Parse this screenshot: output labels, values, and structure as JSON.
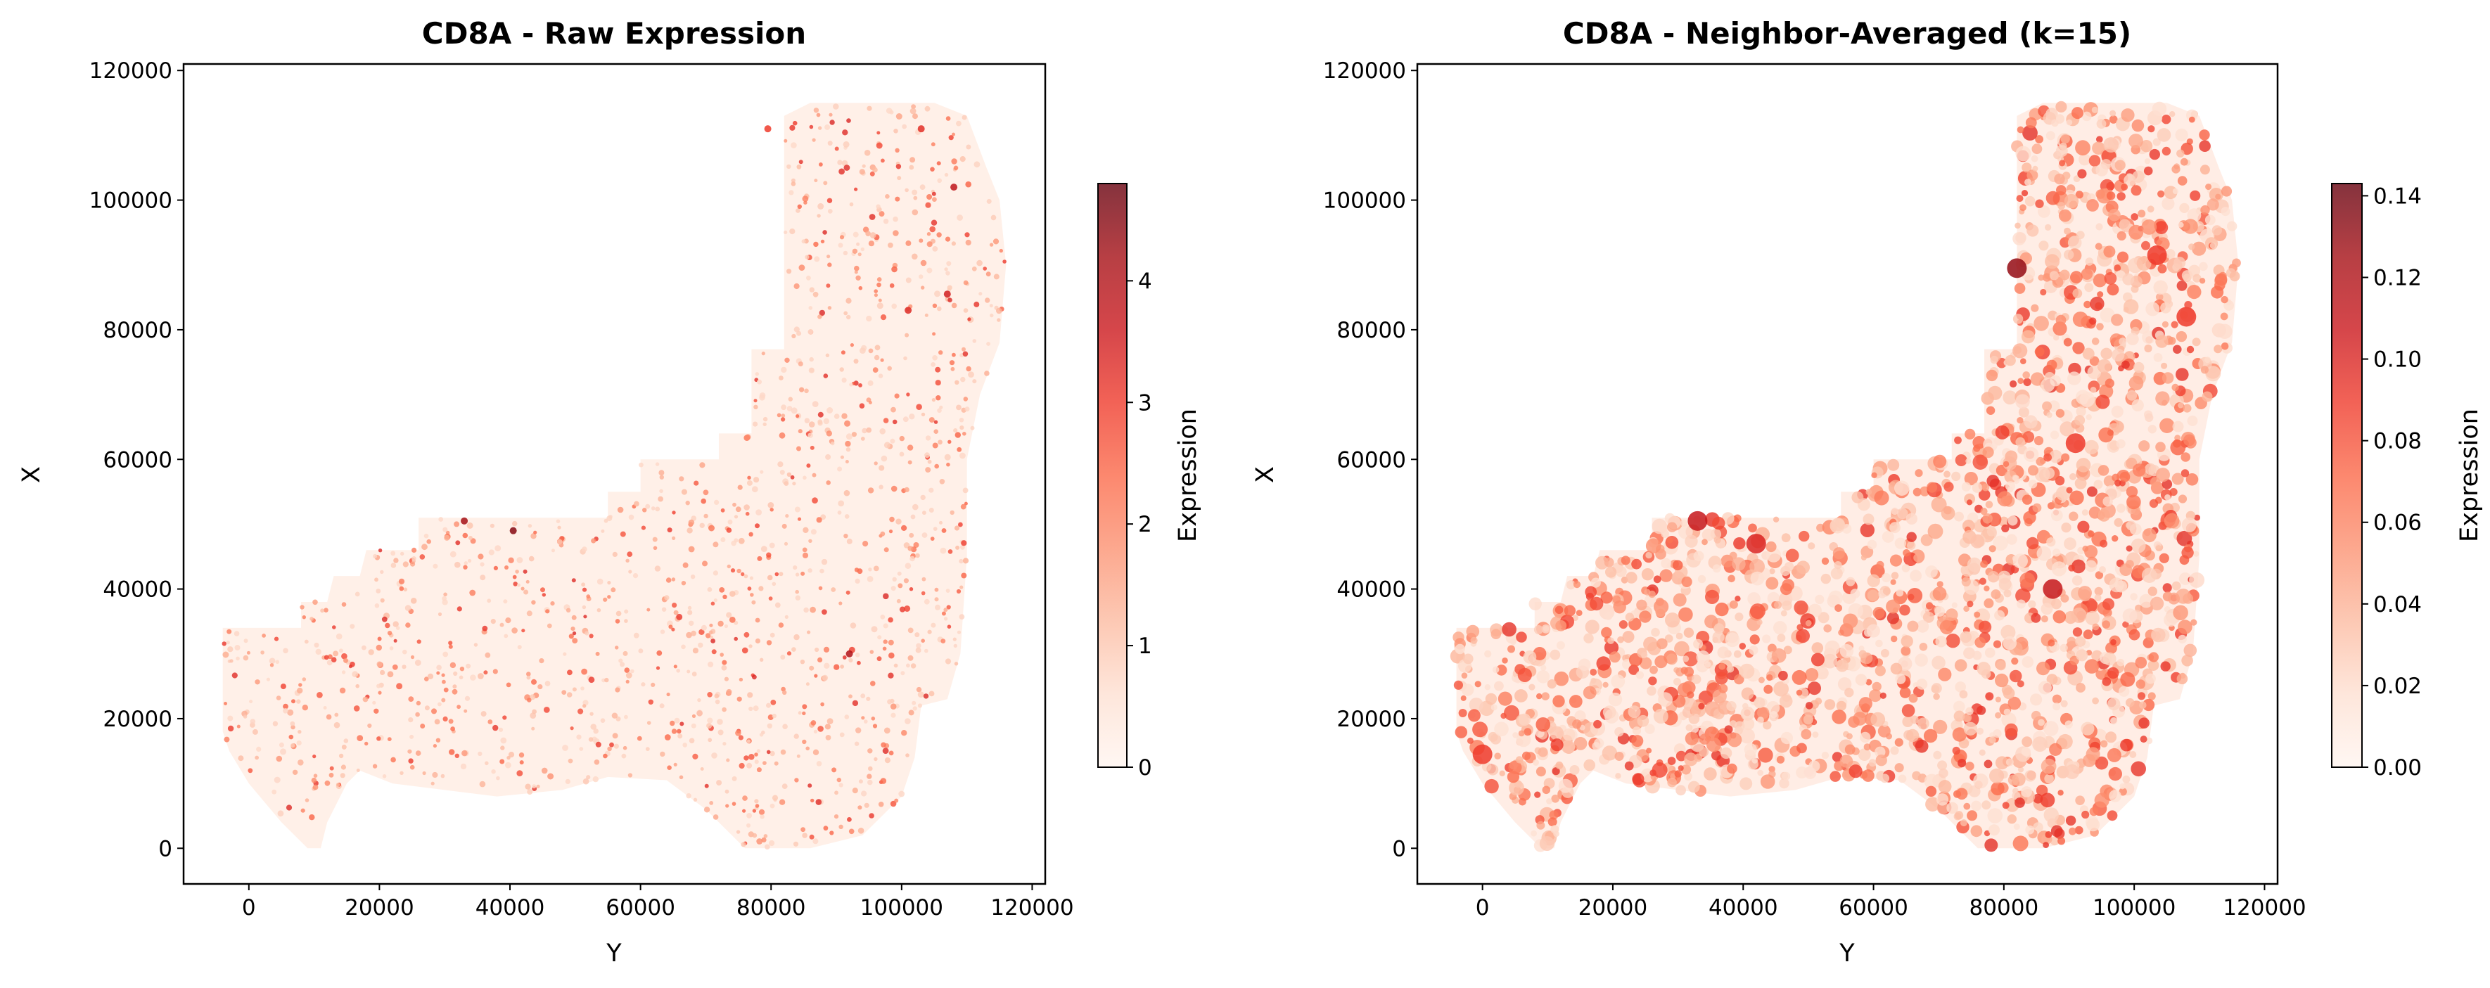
{
  "chart_data": [
    {
      "type": "scatter",
      "title": "CD8A - Raw Expression",
      "xlabel": "Y",
      "ylabel": "X",
      "xlim": [
        -10000,
        122000
      ],
      "ylim": [
        -5500,
        121000
      ],
      "xticks": [
        0,
        20000,
        40000,
        60000,
        80000,
        100000,
        120000
      ],
      "yticks": [
        0,
        20000,
        40000,
        60000,
        80000,
        100000,
        120000
      ],
      "grid": false,
      "colormap": "Reds",
      "colorbar": {
        "label": "Expression",
        "range": [
          0,
          4.8
        ],
        "ticks": [
          0,
          1,
          2,
          3,
          4
        ]
      },
      "tissue_outline": [
        [
          -4000,
          18000
        ],
        [
          -4000,
          34000
        ],
        [
          8000,
          34000
        ],
        [
          8000,
          38000
        ],
        [
          12000,
          38000
        ],
        [
          13000,
          42000
        ],
        [
          17000,
          42000
        ],
        [
          18000,
          46000
        ],
        [
          26000,
          46000
        ],
        [
          26000,
          51000
        ],
        [
          55000,
          51000
        ],
        [
          55000,
          55000
        ],
        [
          60000,
          55000
        ],
        [
          60000,
          60000
        ],
        [
          72000,
          60000
        ],
        [
          72000,
          64000
        ],
        [
          77000,
          64000
        ],
        [
          77000,
          77000
        ],
        [
          82000,
          77000
        ],
        [
          82000,
          113000
        ],
        [
          86000,
          115000
        ],
        [
          105000,
          115000
        ],
        [
          110000,
          113000
        ],
        [
          113000,
          105000
        ],
        [
          115000,
          100000
        ],
        [
          116000,
          90000
        ],
        [
          115000,
          78000
        ],
        [
          112000,
          70000
        ],
        [
          110000,
          60000
        ],
        [
          110000,
          45000
        ],
        [
          109000,
          30000
        ],
        [
          107000,
          23000
        ],
        [
          103000,
          22000
        ],
        [
          102000,
          14000
        ],
        [
          100000,
          8000
        ],
        [
          94000,
          2000
        ],
        [
          86000,
          0
        ],
        [
          76000,
          0
        ],
        [
          70000,
          6000
        ],
        [
          64000,
          10500
        ],
        [
          55000,
          11000
        ],
        [
          48000,
          9000
        ],
        [
          38000,
          8000
        ],
        [
          30000,
          9000
        ],
        [
          22000,
          10000
        ],
        [
          17000,
          12000
        ],
        [
          15000,
          10000
        ],
        [
          12000,
          4000
        ],
        [
          11000,
          0
        ],
        [
          9000,
          0
        ],
        [
          5000,
          4000
        ],
        [
          0,
          10000
        ],
        [
          -3000,
          15000
        ]
      ],
      "hotspots": [
        [
          33000,
          50500,
          4.2
        ],
        [
          40500,
          49000,
          4.5
        ],
        [
          108000,
          102000,
          3.8
        ],
        [
          79500,
          111000,
          3.0
        ],
        [
          103000,
          111000,
          3.2
        ],
        [
          92000,
          30000,
          4.0
        ],
        [
          107000,
          85500,
          3.5
        ],
        [
          101000,
          83000,
          3.3
        ]
      ],
      "background_value": 0.1,
      "point_density": "dense, mostly near 0 with sparse high-expression cells"
    },
    {
      "type": "scatter",
      "title": "CD8A - Neighbor-Averaged (k=15)",
      "xlabel": "Y",
      "ylabel": "X",
      "xlim": [
        -10000,
        122000
      ],
      "ylim": [
        -5500,
        121000
      ],
      "xticks": [
        0,
        20000,
        40000,
        60000,
        80000,
        100000,
        120000
      ],
      "yticks": [
        0,
        20000,
        40000,
        60000,
        80000,
        100000,
        120000
      ],
      "grid": false,
      "colormap": "Reds",
      "colorbar": {
        "label": "Expression",
        "range": [
          0,
          0.143
        ],
        "ticks": [
          0.0,
          0.02,
          0.04,
          0.06,
          0.08,
          0.1,
          0.12,
          0.14
        ]
      },
      "tick_format_decimals": 2,
      "hotspots": [
        [
          33000,
          50500,
          0.11
        ],
        [
          82000,
          89500,
          0.13
        ],
        [
          42000,
          47000,
          0.1
        ],
        [
          87500,
          40000,
          0.11
        ],
        [
          103500,
          91500,
          0.09
        ],
        [
          108000,
          82000,
          0.09
        ],
        [
          91000,
          62500,
          0.09
        ],
        [
          0,
          14500,
          0.09
        ]
      ],
      "background_value": 0.005,
      "point_density": "clustered patches with values up to ~0.14"
    }
  ]
}
